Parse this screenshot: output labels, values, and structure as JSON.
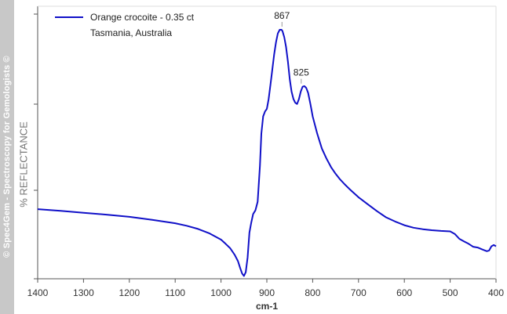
{
  "watermark": "© Spec4Gem - Spectroscopy for Gemologists ©",
  "chart_data": {
    "type": "line",
    "xlabel": "cm-1",
    "ylabel": "% REFLECTANCE",
    "xlim": [
      1400,
      400
    ],
    "ylim": [
      0,
      100
    ],
    "x_reversed": true,
    "x_ticks": [
      1400,
      1300,
      1200,
      1100,
      1000,
      900,
      800,
      700,
      600,
      500,
      400
    ],
    "grid": false,
    "legend": {
      "position": "top-left",
      "lines": [
        "Orange crocoite - 0.35 ct",
        "Tasmania, Australia"
      ]
    },
    "series": [
      {
        "name": "Orange crocoite - 0.35 ct",
        "color": "#1010c8",
        "x": [
          1400,
          1350,
          1300,
          1250,
          1200,
          1150,
          1100,
          1075,
          1050,
          1025,
          1000,
          990,
          980,
          970,
          963,
          958,
          954,
          950,
          946,
          942,
          938,
          934,
          930,
          925,
          920,
          915,
          912,
          908,
          904,
          900,
          896,
          892,
          888,
          884,
          880,
          876,
          872,
          868,
          866,
          862,
          858,
          854,
          850,
          846,
          842,
          838,
          834,
          830,
          826,
          822,
          818,
          814,
          810,
          805,
          800,
          790,
          780,
          770,
          760,
          750,
          740,
          730,
          720,
          710,
          700,
          680,
          660,
          640,
          620,
          600,
          580,
          560,
          540,
          520,
          500,
          490,
          480,
          470,
          460,
          450,
          440,
          430,
          420,
          415,
          410,
          405,
          400
        ],
        "y": [
          27.5,
          26.8,
          26.0,
          25.3,
          24.4,
          23.2,
          21.8,
          20.8,
          19.5,
          17.7,
          15.2,
          13.5,
          11.7,
          9.0,
          6.5,
          3.6,
          1.5,
          0.5,
          2.0,
          8.0,
          18.0,
          22.0,
          25.5,
          27.0,
          30.5,
          45.0,
          58.0,
          65.0,
          67.0,
          68.0,
          72.0,
          78.0,
          84.0,
          90.0,
          95.0,
          98.5,
          100.0,
          100.0,
          99.5,
          97.0,
          93.0,
          87.0,
          80.0,
          75.0,
          72.0,
          70.5,
          70.0,
          72.0,
          75.0,
          77.0,
          77.2,
          76.5,
          74.5,
          70.0,
          65.0,
          58.0,
          52.0,
          48.0,
          44.5,
          41.8,
          39.5,
          37.5,
          35.7,
          34.0,
          32.3,
          29.5,
          26.7,
          24.2,
          22.5,
          21.0,
          20.0,
          19.4,
          19.0,
          18.7,
          18.5,
          17.5,
          15.5,
          14.5,
          13.5,
          12.3,
          12.0,
          11.2,
          10.5,
          10.8,
          12.5,
          13.0,
          12.5
        ]
      }
    ],
    "annotations": [
      {
        "label": "867",
        "x": 867,
        "y": 100
      },
      {
        "label": "825",
        "x": 825,
        "y": 77
      }
    ]
  }
}
